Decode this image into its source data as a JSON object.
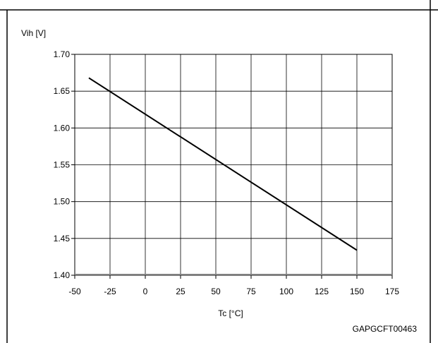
{
  "chart_data": {
    "type": "line",
    "title": "",
    "xlabel": "Tc [°C]",
    "ylabel": "Vih [V]",
    "xlim": [
      -50,
      175
    ],
    "ylim": [
      1.4,
      1.7
    ],
    "xticks": [
      -50,
      -25,
      0,
      25,
      50,
      75,
      100,
      125,
      150,
      175
    ],
    "yticks": [
      1.4,
      1.45,
      1.5,
      1.55,
      1.6,
      1.65,
      1.7
    ],
    "xtick_labels": [
      "-50",
      "-25",
      "0",
      "25",
      "50",
      "75",
      "100",
      "125",
      "150",
      "175"
    ],
    "ytick_labels": [
      "1.40",
      "1.45",
      "1.50",
      "1.55",
      "1.60",
      "1.65",
      "1.70"
    ],
    "grid": true,
    "legend": "none",
    "series": [
      {
        "x": [
          -40,
          150
        ],
        "y": [
          1.668,
          1.434
        ]
      }
    ],
    "figure_code": "GAPGCFT00463"
  }
}
